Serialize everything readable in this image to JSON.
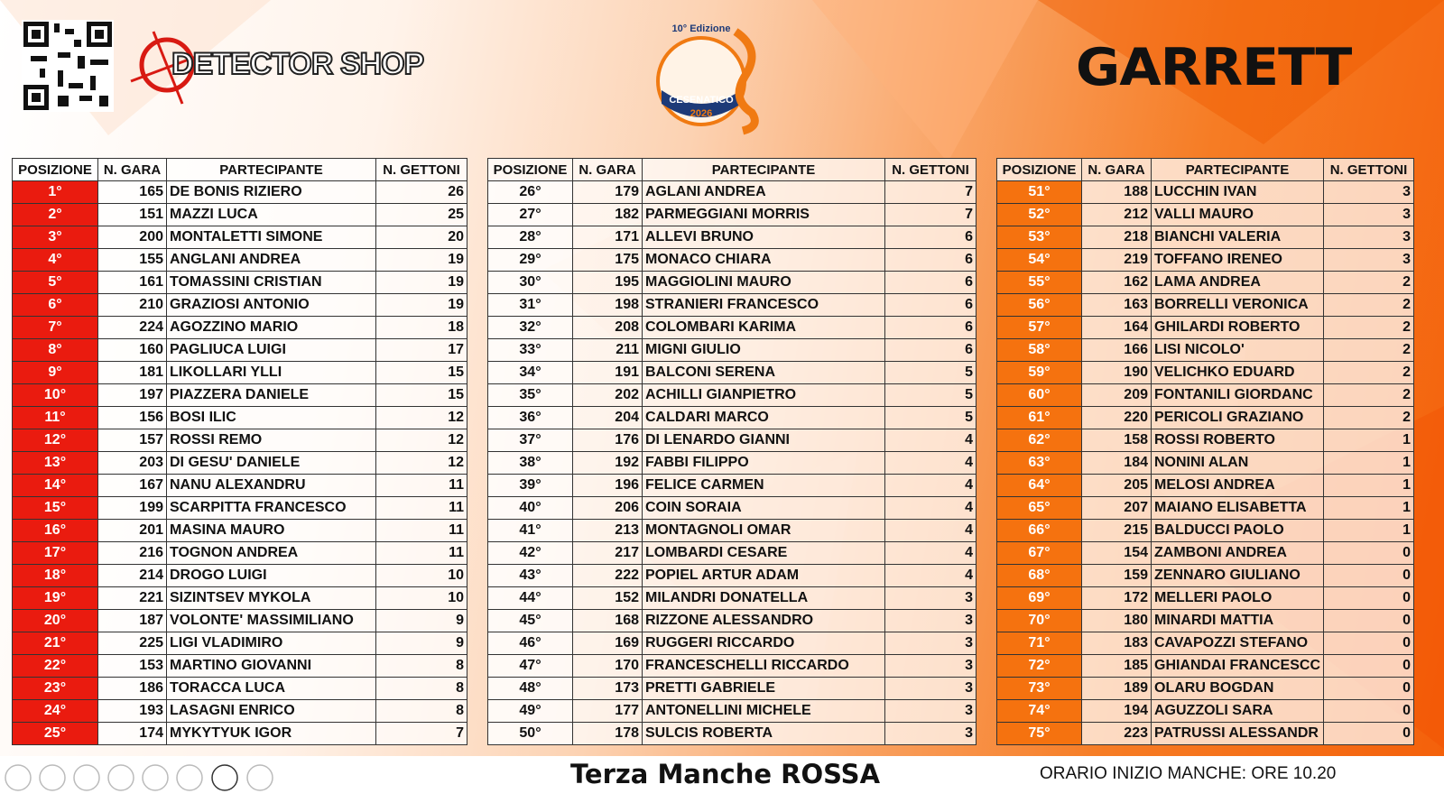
{
  "header": {
    "brand_left": "DETECTOR SHOP",
    "logo_edition": "10° Edizione",
    "logo_place": "CESENATICO",
    "logo_year": "2026",
    "brand_right": "GARRETT"
  },
  "tables": [
    {
      "header": [
        "POSIZIONE",
        "N. GARA",
        "PARTECIPANTE",
        "N. GETTONI"
      ],
      "rows": [
        [
          "1°",
          165,
          "DE BONIS RIZIERO",
          26
        ],
        [
          "2°",
          151,
          "MAZZI LUCA",
          25
        ],
        [
          "3°",
          200,
          "MONTALETTI SIMONE",
          20
        ],
        [
          "4°",
          155,
          "ANGLANI ANDREA",
          19
        ],
        [
          "5°",
          161,
          "TOMASSINI CRISTIAN",
          19
        ],
        [
          "6°",
          210,
          "GRAZIOSI ANTONIO",
          19
        ],
        [
          "7°",
          224,
          "AGOZZINO MARIO",
          18
        ],
        [
          "8°",
          160,
          "PAGLIUCA LUIGI",
          17
        ],
        [
          "9°",
          181,
          "LIKOLLARI YLLI",
          15
        ],
        [
          "10°",
          197,
          "PIAZZERA DANIELE",
          15
        ],
        [
          "11°",
          156,
          "BOSI ILIC",
          12
        ],
        [
          "12°",
          157,
          "ROSSI REMO",
          12
        ],
        [
          "13°",
          203,
          "DI GESU' DANIELE",
          12
        ],
        [
          "14°",
          167,
          "NANU ALEXANDRU",
          11
        ],
        [
          "15°",
          199,
          "SCARPITTA FRANCESCO",
          11
        ],
        [
          "16°",
          201,
          "MASINA MAURO",
          11
        ],
        [
          "17°",
          216,
          "TOGNON ANDREA",
          11
        ],
        [
          "18°",
          214,
          "DROGO LUIGI",
          10
        ],
        [
          "19°",
          221,
          "SIZINTSEV MYKOLA",
          10
        ],
        [
          "20°",
          187,
          "VOLONTE' MASSIMILIANO",
          9
        ],
        [
          "21°",
          225,
          "LIGI VLADIMIRO",
          9
        ],
        [
          "22°",
          153,
          "MARTINO GIOVANNI",
          8
        ],
        [
          "23°",
          186,
          "TORACCA LUCA",
          8
        ],
        [
          "24°",
          193,
          "LASAGNI ENRICO",
          8
        ],
        [
          "25°",
          174,
          "MYKYTYUK IGOR",
          7
        ]
      ]
    },
    {
      "header": [
        "POSIZIONE",
        "N. GARA",
        "PARTECIPANTE",
        "N. GETTONI"
      ],
      "rows": [
        [
          "26°",
          179,
          "AGLANI ANDREA",
          7
        ],
        [
          "27°",
          182,
          "PARMEGGIANI MORRIS",
          7
        ],
        [
          "28°",
          171,
          "ALLEVI BRUNO",
          6
        ],
        [
          "29°",
          175,
          "MONACO CHIARA",
          6
        ],
        [
          "30°",
          195,
          "MAGGIOLINI MAURO",
          6
        ],
        [
          "31°",
          198,
          "STRANIERI FRANCESCO",
          6
        ],
        [
          "32°",
          208,
          "COLOMBARI KARIMA",
          6
        ],
        [
          "33°",
          211,
          "MIGNI GIULIO",
          6
        ],
        [
          "34°",
          191,
          "BALCONI SERENA",
          5
        ],
        [
          "35°",
          202,
          "ACHILLI GIANPIETRO",
          5
        ],
        [
          "36°",
          204,
          "CALDARI MARCO",
          5
        ],
        [
          "37°",
          176,
          "DI LENARDO GIANNI",
          4
        ],
        [
          "38°",
          192,
          "FABBI FILIPPO",
          4
        ],
        [
          "39°",
          196,
          "FELICE CARMEN",
          4
        ],
        [
          "40°",
          206,
          "COIN SORAIA",
          4
        ],
        [
          "41°",
          213,
          "MONTAGNOLI OMAR",
          4
        ],
        [
          "42°",
          217,
          "LOMBARDI CESARE",
          4
        ],
        [
          "43°",
          222,
          "POPIEL ARTUR ADAM",
          4
        ],
        [
          "44°",
          152,
          "MILANDRI DONATELLA",
          3
        ],
        [
          "45°",
          168,
          "RIZZONE ALESSANDRO",
          3
        ],
        [
          "46°",
          169,
          "RUGGERI RICCARDO",
          3
        ],
        [
          "47°",
          170,
          "FRANCESCHELLI RICCARDO",
          3
        ],
        [
          "48°",
          173,
          "PRETTI GABRIELE",
          3
        ],
        [
          "49°",
          177,
          "ANTONELLINI MICHELE",
          3
        ],
        [
          "50°",
          178,
          "SULCIS ROBERTA",
          3
        ]
      ]
    },
    {
      "header": [
        "POSIZIONE",
        "N. GARA",
        "PARTECIPANTE",
        "N. GETTONI"
      ],
      "rows": [
        [
          "51°",
          188,
          "LUCCHIN IVAN",
          3
        ],
        [
          "52°",
          212,
          "VALLI MAURO",
          3
        ],
        [
          "53°",
          218,
          "BIANCHI VALERIA",
          3
        ],
        [
          "54°",
          219,
          "TOFFANO IRENEO",
          3
        ],
        [
          "55°",
          162,
          "LAMA ANDREA",
          2
        ],
        [
          "56°",
          163,
          "BORRELLI VERONICA",
          2
        ],
        [
          "57°",
          164,
          "GHILARDI ROBERTO",
          2
        ],
        [
          "58°",
          166,
          "LISI NICOLO'",
          2
        ],
        [
          "59°",
          190,
          "VELICHKO EDUARD",
          2
        ],
        [
          "60°",
          209,
          "FONTANILI GIORDANC",
          2
        ],
        [
          "61°",
          220,
          "PERICOLI GRAZIANO",
          2
        ],
        [
          "62°",
          158,
          "ROSSI ROBERTO",
          1
        ],
        [
          "63°",
          184,
          "NONINI ALAN",
          1
        ],
        [
          "64°",
          205,
          "MELOSI ANDREA",
          1
        ],
        [
          "65°",
          207,
          "MAIANO ELISABETTA",
          1
        ],
        [
          "66°",
          215,
          "BALDUCCI PAOLO",
          1
        ],
        [
          "67°",
          154,
          "ZAMBONI ANDREA",
          0
        ],
        [
          "68°",
          159,
          "ZENNARO GIULIANO",
          0
        ],
        [
          "69°",
          172,
          "MELLERI PAOLO",
          0
        ],
        [
          "70°",
          180,
          "MINARDI MATTIA",
          0
        ],
        [
          "71°",
          183,
          "CAVAPOZZI STEFANO",
          0
        ],
        [
          "72°",
          185,
          "GHIANDAI FRANCESCC",
          0
        ],
        [
          "73°",
          189,
          "OLARU BOGDAN",
          0
        ],
        [
          "74°",
          194,
          "AGUZZOLI SARA",
          0
        ],
        [
          "75°",
          223,
          "PATRUSSI ALESSANDR",
          0
        ]
      ]
    }
  ],
  "footer": {
    "title": "Terza Manche ROSSA",
    "start_time": "ORARIO INIZIO MANCHE: ORE 10.20"
  }
}
